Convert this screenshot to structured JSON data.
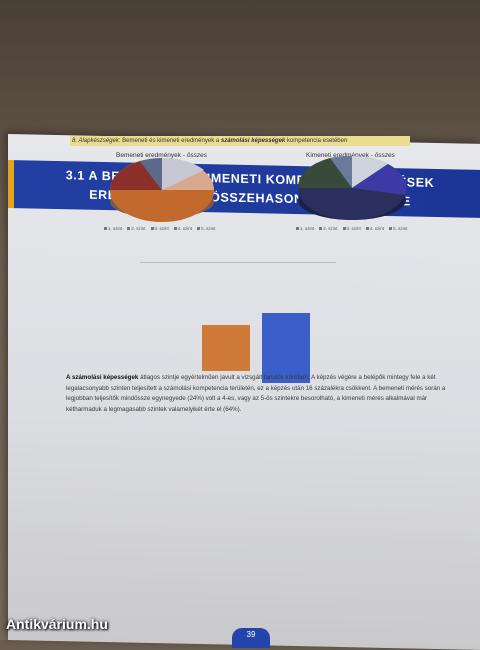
{
  "section": {
    "title_line1": "3.1 A BEMENETI ÉS KIMENETI KOMPETENCIA MÉRÉSEK",
    "title_line2": "EREDMÉNYEINEK ÖSSZEHASONLÍTÓ ELEMZÉSE"
  },
  "subheading": {
    "prefix": "8. Alapkészségek",
    "mid": ": Bemeneti és kimeneti eredmények a ",
    "emph": "számolási képességek",
    "suffix": " kompetencia esetében"
  },
  "pie_left": {
    "title_plain": "Bemeneti eredmények - ",
    "title_italic": "összes",
    "colors": [
      "#c26a2e",
      "#8a2f2a",
      "#5a6a8c",
      "#c8c8d4",
      "#d9a98f"
    ]
  },
  "pie_right": {
    "title_plain": "Kimeneti eredmények - ",
    "title_italic": "összes",
    "colors": [
      "#2b2f5e",
      "#3a4a3a",
      "#6b7a9a",
      "#cfd3dd",
      "#3d3aa8"
    ]
  },
  "legend": [
    "1. szint",
    "2. szint",
    "3. szint",
    "4. szint",
    "5. szint"
  ],
  "bars": {
    "colors": [
      "#d07a3a",
      "#3b5fc8"
    ]
  },
  "paragraph": {
    "bold": "A számolási képességek",
    "text": " átlagos szintje egyértelműen javult a vizsgált tanulók körében. A képzés végére a belépők mintegy fele a két legalacsonyabb szinten teljesített a számolási kompetencia területén, ez a képzés után 16 százalékra csökkent. A bemeneti mérés során a legjobban teljesítők mindössze egynegyede (24%) volt a 4-es, vagy az 5-ös szintekre besorolható, a kimeneti mérés alkalmával már kétharmaduk a legmagasabb szintek valamelyikét érte el (64%)."
  },
  "page_number": "39",
  "watermark": "Antikvárium.hu"
}
